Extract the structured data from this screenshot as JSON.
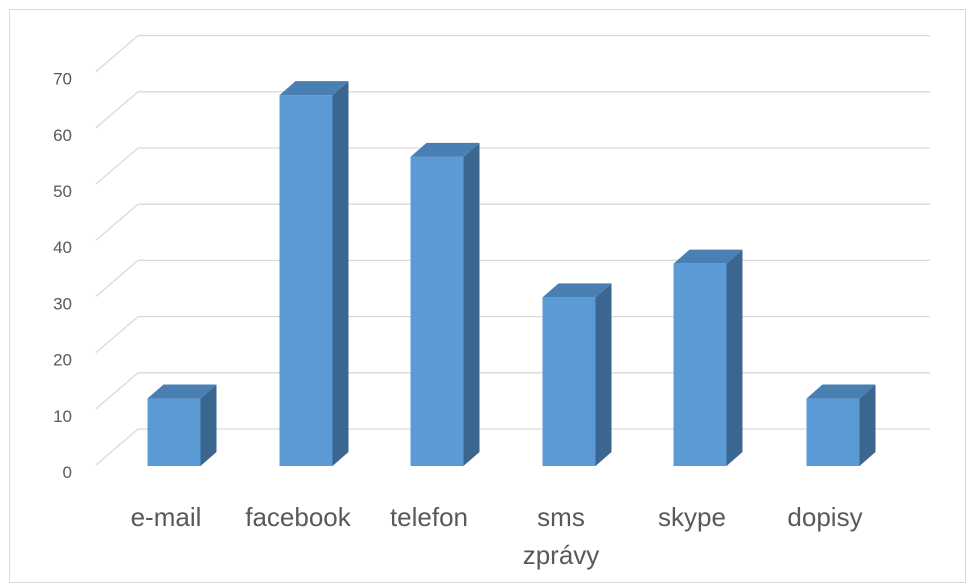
{
  "chart_data": {
    "type": "bar",
    "style": "3d-column",
    "categories": [
      "e-mail",
      "facebook",
      "telefon",
      "sms zprávy",
      "skype",
      "dopisy"
    ],
    "category_lines": [
      [
        "e-mail"
      ],
      [
        "facebook"
      ],
      [
        "telefon"
      ],
      [
        "sms",
        "zprávy"
      ],
      [
        "skype"
      ],
      [
        "dopisy"
      ]
    ],
    "values": [
      12,
      66,
      55,
      30,
      36,
      12
    ],
    "title": "",
    "xlabel": "",
    "ylabel": "",
    "ylim": [
      0,
      70
    ],
    "yticks": [
      0,
      10,
      20,
      30,
      40,
      50,
      60,
      70
    ],
    "grid": true,
    "legend": "none",
    "colors": {
      "front": "#5b9bd5",
      "side": "#3b6690",
      "top": "#4a7fb3",
      "grid": "#d9d9d9",
      "text": "#595959"
    }
  }
}
